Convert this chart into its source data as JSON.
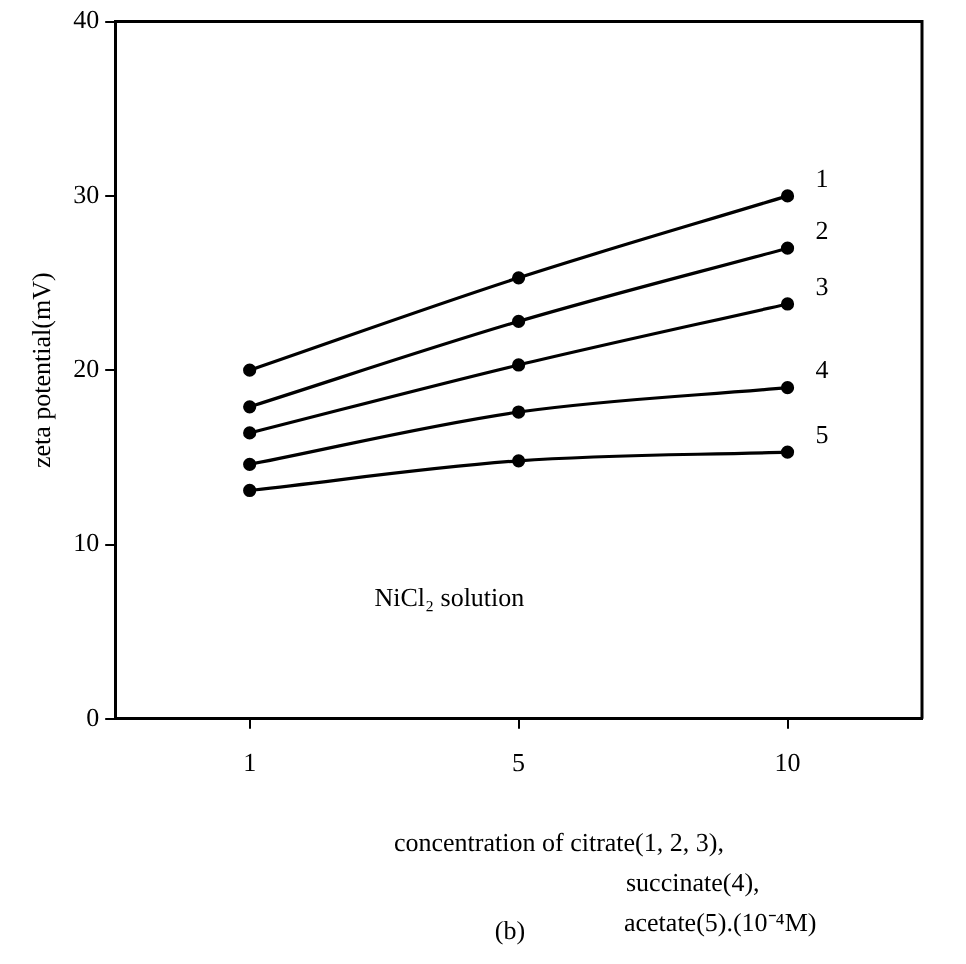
{
  "chart_data": {
    "type": "line",
    "xlabel": "concentration of citrate(1, 2, 3),\nsuccinate(4),\nacetate(5).(10⁻⁴M)",
    "ylabel": "zeta potential(mV)",
    "categories": [
      "1",
      "5",
      "10"
    ],
    "series": [
      {
        "name": "1",
        "color": "#000000",
        "values": [
          20.0,
          25.3,
          30.0
        ]
      },
      {
        "name": "2",
        "color": "#000000",
        "values": [
          17.9,
          22.8,
          27.0
        ]
      },
      {
        "name": "3",
        "color": "#000000",
        "values": [
          16.4,
          20.3,
          23.8
        ]
      },
      {
        "name": "4",
        "color": "#000000",
        "values": [
          14.6,
          17.6,
          19.0
        ]
      },
      {
        "name": "5",
        "color": "#000000",
        "values": [
          13.1,
          14.8,
          15.3
        ]
      }
    ],
    "ylim": [
      0,
      40
    ],
    "yticks": [
      0,
      10,
      20,
      30,
      40
    ],
    "grid": false,
    "legend": false,
    "marker": "circle",
    "line_style": "solid",
    "annotations": [
      "NiCl₂ solution",
      "(b)"
    ]
  }
}
